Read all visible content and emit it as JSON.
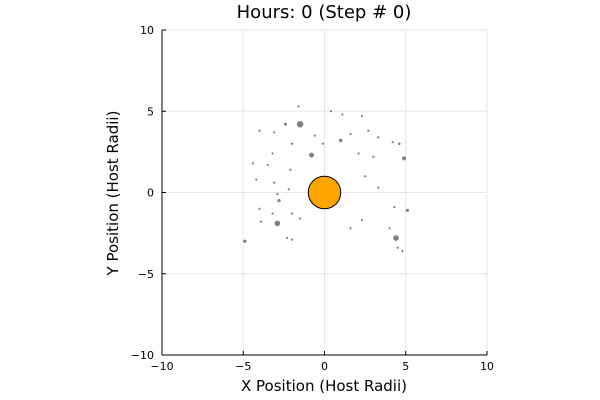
{
  "chart_data": {
    "type": "scatter",
    "title": "Hours: 0 (Step # 0)",
    "xlabel": "X Position (Host Radii)",
    "ylabel": "Y Position (Host Radii)",
    "xlim": [
      -10,
      10
    ],
    "ylim": [
      -10,
      10
    ],
    "x_ticks": [
      -10,
      -5,
      0,
      5,
      10
    ],
    "y_ticks": [
      -10,
      -5,
      0,
      5,
      10
    ],
    "x_tick_labels": [
      "−10",
      "−5",
      "0",
      "5",
      "10"
    ],
    "y_tick_labels": [
      "−10",
      "−5",
      "0",
      "5",
      "10"
    ],
    "grid": true,
    "legend": "none",
    "colors": {
      "host": "#FFA500",
      "particles": "#808080"
    },
    "host": {
      "x": 0,
      "y": 0,
      "radius": 1
    },
    "series": [
      {
        "values": [
          [
            -1.6,
            5.3,
            0.06
          ],
          [
            0.4,
            5.0,
            0.05
          ],
          [
            1.1,
            4.8,
            0.05
          ],
          [
            2.3,
            4.7,
            0.05
          ],
          [
            -4.0,
            3.8,
            0.07
          ],
          [
            -2.4,
            4.2,
            0.09
          ],
          [
            -1.5,
            4.2,
            0.2
          ],
          [
            -3.1,
            3.7,
            0.06
          ],
          [
            -0.6,
            3.5,
            0.06
          ],
          [
            1.0,
            3.2,
            0.11
          ],
          [
            1.6,
            3.6,
            0.06
          ],
          [
            2.7,
            3.8,
            0.06
          ],
          [
            3.3,
            3.4,
            0.05
          ],
          [
            4.2,
            3.1,
            0.06
          ],
          [
            4.6,
            3.0,
            0.08
          ],
          [
            -2.0,
            3.0,
            0.05
          ],
          [
            -0.1,
            3.0,
            0.07
          ],
          [
            -3.2,
            2.4,
            0.06
          ],
          [
            -0.8,
            2.3,
            0.15
          ],
          [
            2.1,
            2.4,
            0.05
          ],
          [
            3.0,
            2.2,
            0.07
          ],
          [
            4.9,
            2.1,
            0.12
          ],
          [
            -4.4,
            1.8,
            0.07
          ],
          [
            -3.5,
            1.7,
            0.06
          ],
          [
            -2.1,
            1.4,
            0.05
          ],
          [
            2.5,
            1.0,
            0.06
          ],
          [
            -4.2,
            0.8,
            0.06
          ],
          [
            -3.1,
            0.6,
            0.06
          ],
          [
            3.3,
            0.3,
            0.06
          ],
          [
            -2.2,
            0.2,
            0.06
          ],
          [
            -2.9,
            -0.1,
            0.05
          ],
          [
            -2.8,
            -0.5,
            0.1
          ],
          [
            4.3,
            -0.9,
            0.06
          ],
          [
            -4.0,
            -1.0,
            0.06
          ],
          [
            -3.2,
            -1.3,
            0.06
          ],
          [
            -2.0,
            -1.3,
            0.06
          ],
          [
            5.1,
            -1.1,
            0.1
          ],
          [
            -1.5,
            -1.6,
            0.06
          ],
          [
            -3.9,
            -1.8,
            0.07
          ],
          [
            -2.9,
            -1.9,
            0.17
          ],
          [
            2.3,
            -1.7,
            0.06
          ],
          [
            1.6,
            -2.2,
            0.06
          ],
          [
            4.0,
            -2.2,
            0.06
          ],
          [
            -2.3,
            -2.8,
            0.06
          ],
          [
            -2.0,
            -2.9,
            0.05
          ],
          [
            4.4,
            -2.8,
            0.17
          ],
          [
            -4.9,
            -3.0,
            0.1
          ],
          [
            4.5,
            -3.4,
            0.05
          ],
          [
            4.8,
            -3.6,
            0.06
          ]
        ]
      }
    ]
  }
}
